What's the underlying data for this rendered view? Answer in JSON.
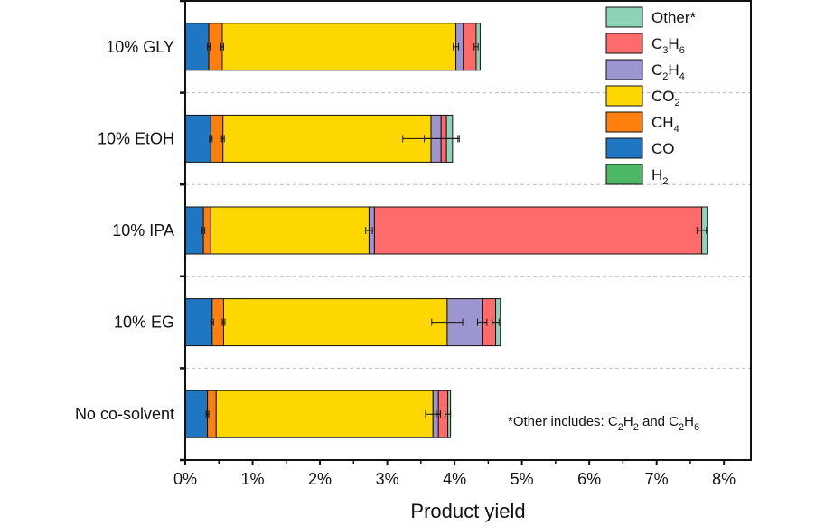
{
  "chart_data": {
    "type": "bar",
    "orientation": "horizontal",
    "stacked": true,
    "xlabel": "Product yield",
    "xlim": [
      0,
      8.4
    ],
    "xticks": [
      0,
      1,
      2,
      3,
      4,
      5,
      6,
      7,
      8
    ],
    "xtick_labels": [
      "0%",
      "1%",
      "2%",
      "3%",
      "4%",
      "5%",
      "6%",
      "7%",
      "8%"
    ],
    "categories": [
      "10% GLY",
      "10% EtOH",
      "10% IPA",
      "10% EG",
      "No co-solvent"
    ],
    "series": [
      {
        "name": "CO",
        "key": "CO",
        "color": "#1f77c4",
        "values": [
          0.35,
          0.38,
          0.27,
          0.4,
          0.33
        ]
      },
      {
        "name": "CH4",
        "key": "CH4",
        "color": "#ff7f0e",
        "values": [
          0.2,
          0.18,
          0.11,
          0.17,
          0.13
        ]
      },
      {
        "name": "CO2",
        "key": "CO2",
        "color": "#ffd700",
        "values": [
          3.47,
          3.09,
          2.35,
          3.32,
          3.22
        ]
      },
      {
        "name": "C2H4",
        "key": "C2H4",
        "color": "#9b95d0",
        "values": [
          0.11,
          0.15,
          0.08,
          0.52,
          0.08
        ]
      },
      {
        "name": "C3H6",
        "key": "C3H6",
        "color": "#ff6b6b",
        "values": [
          0.19,
          0.08,
          4.86,
          0.2,
          0.14
        ]
      },
      {
        "name": "H2",
        "key": "H2",
        "color": "#4cb866",
        "values": [
          0.0,
          0.0,
          0.0,
          0.0,
          0.0
        ]
      },
      {
        "name": "Other*",
        "key": "Other",
        "color": "#8ed3b5",
        "values": [
          0.06,
          0.09,
          0.09,
          0.07,
          0.04
        ]
      }
    ],
    "error_bars": [
      {
        "category": "10% GLY",
        "points": [
          {
            "x": 0.35,
            "err": 0.02
          },
          {
            "x": 0.55,
            "err": 0.02
          },
          {
            "x": 4.02,
            "err": 0.04
          },
          {
            "x": 4.32,
            "err": 0.03
          }
        ]
      },
      {
        "category": "10% EtOH",
        "points": [
          {
            "x": 0.38,
            "err": 0.02
          },
          {
            "x": 0.56,
            "err": 0.02
          },
          {
            "x": 3.65,
            "err": 0.42
          },
          {
            "x": 3.8,
            "err": 0.25
          }
        ]
      },
      {
        "category": "10% IPA",
        "points": [
          {
            "x": 0.27,
            "err": 0.02
          },
          {
            "x": 2.73,
            "err": 0.05
          },
          {
            "x": 7.67,
            "err": 0.07
          }
        ]
      },
      {
        "category": "10% EG",
        "points": [
          {
            "x": 0.4,
            "err": 0.02
          },
          {
            "x": 0.57,
            "err": 0.02
          },
          {
            "x": 3.89,
            "err": 0.23
          },
          {
            "x": 4.41,
            "err": 0.07
          },
          {
            "x": 4.61,
            "err": 0.05
          }
        ]
      },
      {
        "category": "No co-solvent",
        "points": [
          {
            "x": 0.33,
            "err": 0.02
          },
          {
            "x": 3.68,
            "err": 0.11
          },
          {
            "x": 3.76,
            "err": 0.03
          },
          {
            "x": 3.9,
            "err": 0.04
          }
        ]
      }
    ],
    "legend": {
      "placement": "top-right",
      "order": [
        "Other",
        "C3H6",
        "C2H4",
        "CO2",
        "CH4",
        "CO",
        "H2"
      ]
    },
    "annotation": "*Other includes: C2H2 and C2H6",
    "grid": "dashed horizontal separators between categories"
  }
}
